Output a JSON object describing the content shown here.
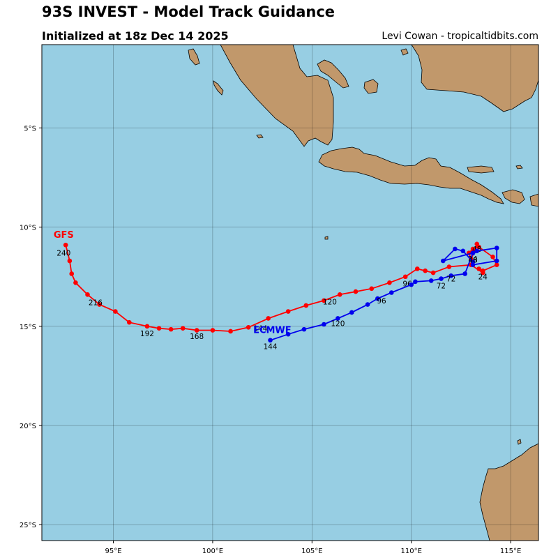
{
  "header": {
    "title": "93S INVEST - Model Track Guidance",
    "subtitle": "Initialized at 18z Dec 14 2025",
    "credit": "Levi Cowan - tropicaltidbits.com"
  },
  "colors": {
    "ocean": "#97cee3",
    "land": "#c1986b",
    "gfs": "#ff0000",
    "ecmwf": "#0000ee"
  },
  "map": {
    "lon_range": [
      91.4,
      116.4
    ],
    "lat_range": [
      -25.8,
      -0.8
    ],
    "x_ticks": [
      {
        "lon": 95,
        "label": "95°E"
      },
      {
        "lon": 100,
        "label": "100°E"
      },
      {
        "lon": 105,
        "label": "105°E"
      },
      {
        "lon": 110,
        "label": "110°E"
      },
      {
        "lon": 115,
        "label": "115°E"
      }
    ],
    "y_ticks": [
      {
        "lat": -5,
        "label": "5°S"
      },
      {
        "lat": -10,
        "label": "10°S"
      },
      {
        "lat": -15,
        "label": "15°S"
      },
      {
        "lat": -20,
        "label": "20°S"
      },
      {
        "lat": -25,
        "label": "25°S"
      }
    ],
    "gridlines": true
  },
  "chart_data": {
    "type": "scatter",
    "series": [
      {
        "name": "GFS",
        "color": "#ff0000",
        "points": [
          [
            113.3,
            -10.85
          ],
          [
            113.2,
            -11.2
          ],
          [
            113.0,
            -11.6
          ],
          [
            112.9,
            -11.3
          ],
          [
            113.1,
            -11.1
          ],
          [
            113.4,
            -11.0
          ],
          [
            114.1,
            -11.5
          ],
          [
            114.3,
            -11.9
          ],
          [
            113.6,
            -12.2
          ],
          [
            113.4,
            -12.1
          ],
          [
            113.6,
            -12.3
          ],
          [
            113.0,
            -11.9
          ],
          [
            111.9,
            -12.0
          ],
          [
            111.1,
            -12.3
          ],
          [
            110.7,
            -12.2
          ],
          [
            110.3,
            -12.1
          ],
          [
            109.7,
            -12.5
          ],
          [
            108.9,
            -12.8
          ],
          [
            108.0,
            -13.1
          ],
          [
            107.2,
            -13.25
          ],
          [
            106.4,
            -13.4
          ],
          [
            105.6,
            -13.7
          ],
          [
            104.7,
            -13.95
          ],
          [
            103.8,
            -14.25
          ],
          [
            102.8,
            -14.6
          ],
          [
            101.8,
            -15.05
          ],
          [
            100.9,
            -15.25
          ],
          [
            100.0,
            -15.2
          ],
          [
            99.2,
            -15.2
          ],
          [
            98.5,
            -15.1
          ],
          [
            97.9,
            -15.15
          ],
          [
            97.3,
            -15.1
          ],
          [
            96.7,
            -15.0
          ],
          [
            95.8,
            -14.8
          ],
          [
            95.1,
            -14.25
          ],
          [
            94.3,
            -13.9
          ],
          [
            93.7,
            -13.4
          ],
          [
            93.1,
            -12.8
          ],
          [
            92.9,
            -12.35
          ],
          [
            92.8,
            -11.7
          ],
          [
            92.6,
            -10.9
          ]
        ],
        "hour_labels": [
          {
            "lon": 113.3,
            "lat": -11.1,
            "text": "48"
          },
          {
            "lon": 113.1,
            "lat": -11.6,
            "text": "24"
          },
          {
            "lon": 109.8,
            "lat": -12.85,
            "text": "96"
          },
          {
            "lon": 105.9,
            "lat": -13.75,
            "text": "120"
          },
          {
            "lon": 102.4,
            "lat": -15.1,
            "text": "144"
          },
          {
            "lon": 99.2,
            "lat": -15.5,
            "text": "168"
          },
          {
            "lon": 96.7,
            "lat": -15.35,
            "text": "192"
          },
          {
            "lon": 94.1,
            "lat": -13.8,
            "text": "216"
          },
          {
            "lon": 92.5,
            "lat": -11.3,
            "text": "240"
          }
        ],
        "model_label": {
          "lon": 92.5,
          "lat": -10.4,
          "text": "GFS"
        }
      },
      {
        "name": "ECMWF",
        "color": "#0000ee",
        "points": [
          [
            113.1,
            -11.3
          ],
          [
            113.3,
            -11.2
          ],
          [
            114.3,
            -11.05
          ],
          [
            114.3,
            -11.7
          ],
          [
            113.1,
            -11.9
          ],
          [
            113.1,
            -11.75
          ],
          [
            112.6,
            -11.2
          ],
          [
            112.2,
            -11.1
          ],
          [
            111.6,
            -11.7
          ],
          [
            113.1,
            -11.3
          ],
          [
            112.7,
            -12.35
          ],
          [
            112.0,
            -12.45
          ],
          [
            111.5,
            -12.6
          ],
          [
            111.0,
            -12.7
          ],
          [
            110.2,
            -12.75
          ],
          [
            110.0,
            -12.9
          ],
          [
            109.0,
            -13.3
          ],
          [
            108.3,
            -13.6
          ],
          [
            107.8,
            -13.9
          ],
          [
            107.0,
            -14.3
          ],
          [
            106.3,
            -14.6
          ],
          [
            105.6,
            -14.9
          ],
          [
            104.6,
            -15.15
          ],
          [
            103.8,
            -15.4
          ],
          [
            102.9,
            -15.7
          ]
        ],
        "hour_labels": [
          {
            "lon": 113.1,
            "lat": -11.65,
            "text": "48"
          },
          {
            "lon": 113.6,
            "lat": -12.5,
            "text": "24"
          },
          {
            "lon": 112.0,
            "lat": -12.6,
            "text": "72"
          },
          {
            "lon": 111.5,
            "lat": -12.95,
            "text": "72"
          },
          {
            "lon": 108.5,
            "lat": -13.7,
            "text": "96"
          },
          {
            "lon": 106.3,
            "lat": -14.85,
            "text": "120"
          },
          {
            "lon": 102.9,
            "lat": -16.0,
            "text": "144"
          }
        ],
        "model_label": {
          "lon": 103.0,
          "lat": -15.2,
          "text": "ECMWF"
        }
      }
    ]
  }
}
